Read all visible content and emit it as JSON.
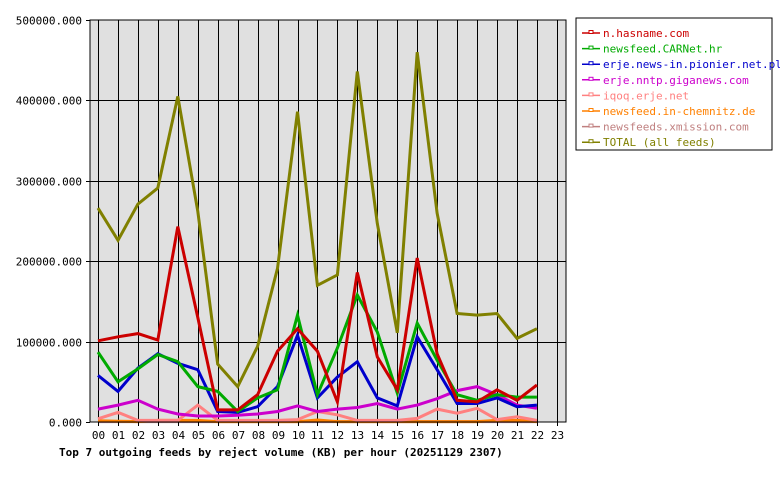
{
  "chart_data": {
    "type": "line",
    "title": "Top 7 outgoing feeds by reject volume (KB) per hour (20251129 2307)",
    "xlabel": "",
    "ylabel": "",
    "ylim": [
      0,
      500000
    ],
    "yticks": [
      "0.000",
      "100000.000",
      "200000.000",
      "300000.000",
      "400000.000",
      "500000.000"
    ],
    "categories": [
      "00",
      "01",
      "02",
      "03",
      "04",
      "05",
      "06",
      "07",
      "08",
      "09",
      "10",
      "11",
      "12",
      "13",
      "14",
      "15",
      "16",
      "17",
      "18",
      "19",
      "20",
      "21",
      "22",
      "23"
    ],
    "grid": true,
    "legend_position": "right",
    "series": [
      {
        "name": "n.hasname.com",
        "color": "#cc0000",
        "values": [
          101000,
          106000,
          110000,
          102000,
          243000,
          130000,
          15000,
          15000,
          34000,
          88000,
          116000,
          88000,
          25000,
          186000,
          81000,
          40000,
          204000,
          85000,
          27000,
          25000,
          40000,
          27000,
          46000
        ]
      },
      {
        "name": "newsfeed.CARNet.hr",
        "color": "#00aa00",
        "values": [
          87000,
          50000,
          66000,
          84000,
          75000,
          44000,
          38000,
          13000,
          30000,
          40000,
          133000,
          34000,
          92000,
          158000,
          112000,
          36000,
          123000,
          77000,
          34000,
          27000,
          34000,
          31000,
          31000
        ]
      },
      {
        "name": "erje.news-in.pionier.net.pl",
        "color": "#0000cc",
        "values": [
          58000,
          38000,
          67000,
          85000,
          73000,
          65000,
          13000,
          12000,
          19000,
          44000,
          108000,
          30000,
          56000,
          75000,
          30000,
          20000,
          106000,
          65000,
          23000,
          23000,
          30000,
          19000,
          21000
        ]
      },
      {
        "name": "erje.nntp.giganews.com",
        "color": "#cc00cc",
        "values": [
          16000,
          21000,
          27000,
          16000,
          10000,
          7500,
          7500,
          8500,
          10000,
          13000,
          20000,
          13000,
          16000,
          18000,
          23000,
          16000,
          21000,
          29000,
          39000,
          44000,
          34000,
          21000,
          17000
        ]
      },
      {
        "name": "iqoq.erje.net",
        "color": "#ff8080",
        "values": [
          4000,
          12000,
          2000,
          2000,
          2000,
          21000,
          2000,
          2000,
          2000,
          2000,
          3000,
          13000,
          9000,
          2000,
          2000,
          2000,
          4500,
          16000,
          11000,
          17000,
          3000,
          6500,
          2000
        ]
      },
      {
        "name": "newsfeed.in-chemnitz.de",
        "color": "#ff8000",
        "values": [
          1500,
          1000,
          500,
          2000,
          2000,
          2000,
          500,
          500,
          500,
          500,
          500,
          2500,
          500,
          500,
          500,
          500,
          500,
          500,
          500,
          500,
          2000,
          2000,
          500
        ]
      },
      {
        "name": "newsfeeds.xmission.com",
        "color": "#c08080",
        "values": [
          500,
          500,
          500,
          500,
          500,
          500,
          500,
          500,
          500,
          500,
          500,
          500,
          500,
          500,
          500,
          500,
          500,
          500,
          500,
          500,
          500,
          500,
          500
        ]
      },
      {
        "name": "TOTAL (all feeds)",
        "color": "#808000",
        "values": [
          266000,
          226000,
          271000,
          291000,
          405000,
          262000,
          72000,
          44000,
          94000,
          191000,
          386000,
          170000,
          183000,
          436000,
          247000,
          111000,
          460000,
          260000,
          135000,
          133000,
          135000,
          104000,
          116000
        ]
      }
    ]
  },
  "legend": {
    "items": [
      "n.hasname.com",
      "newsfeed.CARNet.hr",
      "erje.news-in.pionier.net.pl",
      "erje.nntp.giganews.com",
      "iqoq.erje.net",
      "newsfeed.in-chemnitz.de",
      "newsfeeds.xmission.com",
      "TOTAL (all feeds)"
    ]
  },
  "colors": {
    "plot_background": "#e0e0e0",
    "grid": "#000000"
  }
}
